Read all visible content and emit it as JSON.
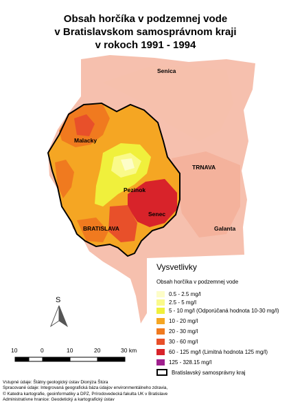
{
  "title": {
    "line1": "Obsah horčíka v podzemnej vode",
    "line2": "v Bratislavskom samosprávnom kraji",
    "line3": "v rokoch 1991 - 1994"
  },
  "towns": {
    "senica": "Senica",
    "malacky": "Malacky",
    "trnava": "TRNAVA",
    "pezinok": "Pezinok",
    "senec": "Senec",
    "bratislava": "BRATISLAVA",
    "galanta": "Galanta"
  },
  "north_arrow": {
    "letter": "S",
    "icon": "north-arrow-icon"
  },
  "scale": {
    "labels": [
      "10",
      "0",
      "10",
      "20",
      "30 km"
    ]
  },
  "legend": {
    "title": "Vysvetlivky",
    "subtitle": "Obsah horčíka v podzemnej vode",
    "items": [
      {
        "label": "0.5 - 2.5 mg/l",
        "color": "#fdfdc8"
      },
      {
        "label": "2.5 - 5 mg/l",
        "color": "#fafa8a"
      },
      {
        "label": "5 - 10 mg/l  (Odporúčaná hodnota 10-30 mg/l)",
        "color": "#f0f03c"
      },
      {
        "label": "10 - 20 mg/l",
        "color": "#f5a623"
      },
      {
        "label": "20 - 30 mg/l",
        "color": "#f07a1f"
      },
      {
        "label": "30 - 60 mg/l",
        "color": "#e8502a"
      },
      {
        "label": "60 - 125 mg/l (Limitná hodnota 125 mg/l)",
        "color": "#d8232a"
      },
      {
        "label": "125 - 328.15 mg/l",
        "color": "#a0208e"
      },
      {
        "label": "Bratislavský samosprávny kraj",
        "color": "#000000"
      }
    ]
  },
  "credits": {
    "line1": "Vstupné údaje: Štátny geologický ústav Dionýza Štúra",
    "line2": "Spracované údaje: Integrovaná geografická báza údajov environmentálneho zdravia,",
    "line3": "© Katedra kartografie, geoinformatiky a DPZ, Prírodovedecká fakulta UK v Bratislave",
    "line4": "Administratívne hranice: Geodetický a kartografický ústav"
  }
}
